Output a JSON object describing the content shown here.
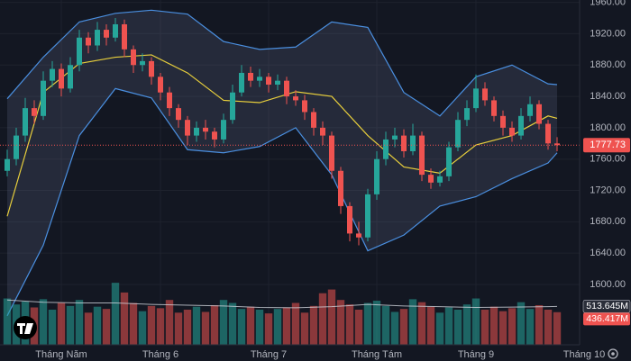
{
  "chart_data": {
    "type": "candlestick",
    "up_color": "#26a69a",
    "down_color": "#ef5350",
    "grid": true,
    "xlim": [
      -0.8,
      63.5
    ],
    "xticks": [
      {
        "value": 6,
        "label": "Tháng Năm"
      },
      {
        "value": 17,
        "label": "Tháng 6"
      },
      {
        "value": 29,
        "label": "Tháng 7"
      },
      {
        "value": 41,
        "label": "Tháng Tám"
      },
      {
        "value": 52,
        "label": "Tháng 9"
      },
      {
        "value": 64,
        "label": "Tháng 10"
      }
    ],
    "ylim": [
      1523,
      1963
    ],
    "yticks": [
      {
        "value": 1600,
        "label": "1600.00"
      },
      {
        "value": 1640,
        "label": "1640.00"
      },
      {
        "value": 1680,
        "label": "1680.00"
      },
      {
        "value": 1720,
        "label": "1720.00"
      },
      {
        "value": 1760,
        "label": "1760.00"
      },
      {
        "value": 1800,
        "label": "1800.00"
      },
      {
        "value": 1840,
        "label": "1840.00"
      },
      {
        "value": 1880,
        "label": "1880.00"
      },
      {
        "value": 1920,
        "label": "1920.00"
      },
      {
        "value": 1960,
        "label": "1960.00"
      }
    ],
    "open": [
      1745,
      1760,
      1790,
      1825,
      1815,
      1860,
      1875,
      1850,
      1880,
      1915,
      1905,
      1925,
      1915,
      1932,
      1900,
      1880,
      1885,
      1865,
      1845,
      1825,
      1810,
      1790,
      1800,
      1795,
      1785,
      1810,
      1845,
      1870,
      1860,
      1865,
      1855,
      1860,
      1840,
      1835,
      1820,
      1800,
      1790,
      1745,
      1700,
      1665,
      1660,
      1715,
      1760,
      1785,
      1790,
      1770,
      1790,
      1740,
      1730,
      1738,
      1775,
      1810,
      1825,
      1850,
      1835,
      1815,
      1800,
      1790,
      1815,
      1830,
      1805,
      1780
    ],
    "high": [
      1772,
      1800,
      1838,
      1835,
      1872,
      1885,
      1882,
      1890,
      1925,
      1922,
      1935,
      1932,
      1940,
      1938,
      1905,
      1895,
      1890,
      1870,
      1852,
      1830,
      1815,
      1808,
      1810,
      1800,
      1818,
      1855,
      1880,
      1878,
      1875,
      1870,
      1868,
      1865,
      1848,
      1842,
      1825,
      1808,
      1795,
      1750,
      1705,
      1680,
      1722,
      1770,
      1795,
      1800,
      1798,
      1805,
      1795,
      1748,
      1745,
      1782,
      1820,
      1835,
      1868,
      1858,
      1840,
      1822,
      1808,
      1825,
      1840,
      1835,
      1810,
      1788
    ],
    "low": [
      1738,
      1752,
      1782,
      1805,
      1810,
      1852,
      1840,
      1845,
      1872,
      1895,
      1898,
      1905,
      1910,
      1890,
      1870,
      1872,
      1855,
      1835,
      1815,
      1800,
      1778,
      1782,
      1785,
      1775,
      1780,
      1805,
      1840,
      1852,
      1852,
      1845,
      1848,
      1830,
      1828,
      1810,
      1790,
      1778,
      1735,
      1690,
      1655,
      1650,
      1655,
      1708,
      1752,
      1775,
      1762,
      1765,
      1732,
      1722,
      1725,
      1732,
      1770,
      1802,
      1820,
      1828,
      1808,
      1790,
      1782,
      1785,
      1808,
      1798,
      1772,
      1770
    ],
    "close": [
      1760,
      1790,
      1825,
      1815,
      1860,
      1875,
      1850,
      1880,
      1915,
      1905,
      1925,
      1915,
      1932,
      1900,
      1880,
      1885,
      1865,
      1845,
      1825,
      1810,
      1790,
      1800,
      1795,
      1785,
      1810,
      1845,
      1870,
      1860,
      1865,
      1855,
      1860,
      1840,
      1835,
      1820,
      1800,
      1790,
      1745,
      1700,
      1665,
      1660,
      1715,
      1760,
      1785,
      1790,
      1770,
      1790,
      1740,
      1730,
      1738,
      1775,
      1810,
      1825,
      1850,
      1835,
      1815,
      1800,
      1790,
      1815,
      1830,
      1805,
      1780,
      1777.73
    ],
    "bands": {
      "x": [
        0,
        4,
        8,
        12,
        16,
        20,
        24,
        28,
        32,
        36,
        40,
        44,
        48,
        52,
        56,
        60,
        61
      ],
      "upper": [
        1837,
        1890,
        1935,
        1946,
        1950,
        1945,
        1910,
        1900,
        1903,
        1935,
        1928,
        1845,
        1815,
        1865,
        1880,
        1856,
        1855
      ],
      "middle": [
        1687,
        1845,
        1882,
        1890,
        1893,
        1870,
        1835,
        1832,
        1846,
        1840,
        1790,
        1750,
        1742,
        1778,
        1790,
        1815,
        1812
      ],
      "lower": [
        1560,
        1650,
        1790,
        1850,
        1838,
        1772,
        1768,
        1776,
        1800,
        1740,
        1643,
        1663,
        1700,
        1712,
        1735,
        1755,
        1768
      ],
      "band_color": "#4a8fe0",
      "middle_color": "#e8cf3c"
    },
    "volume": {
      "ylim": [
        0,
        1000
      ],
      "values": [
        620,
        540,
        580,
        500,
        610,
        470,
        560,
        520,
        600,
        430,
        510,
        480,
        830,
        700,
        560,
        450,
        520,
        490,
        600,
        430,
        470,
        510,
        440,
        530,
        600,
        560,
        480,
        510,
        470,
        420,
        480,
        500,
        560,
        430,
        520,
        690,
        740,
        600,
        540,
        470,
        560,
        590,
        520,
        440,
        480,
        610,
        570,
        510,
        430,
        500,
        470,
        540,
        620,
        470,
        510,
        450,
        490,
        570,
        480,
        530,
        470,
        436.417
      ],
      "last_label": "436.417M",
      "ma": {
        "x": [
          0,
          4,
          8,
          12,
          16,
          20,
          24,
          28,
          32,
          36,
          40,
          44,
          48,
          52,
          56,
          60,
          61
        ],
        "values": [
          600,
          570,
          560,
          560,
          540,
          530,
          520,
          500,
          495,
          510,
          540,
          520,
          510,
          500,
          505,
          510,
          513.645
        ],
        "color": "#d1d4dc"
      },
      "ma_last_label": "513.645M"
    }
  }
}
